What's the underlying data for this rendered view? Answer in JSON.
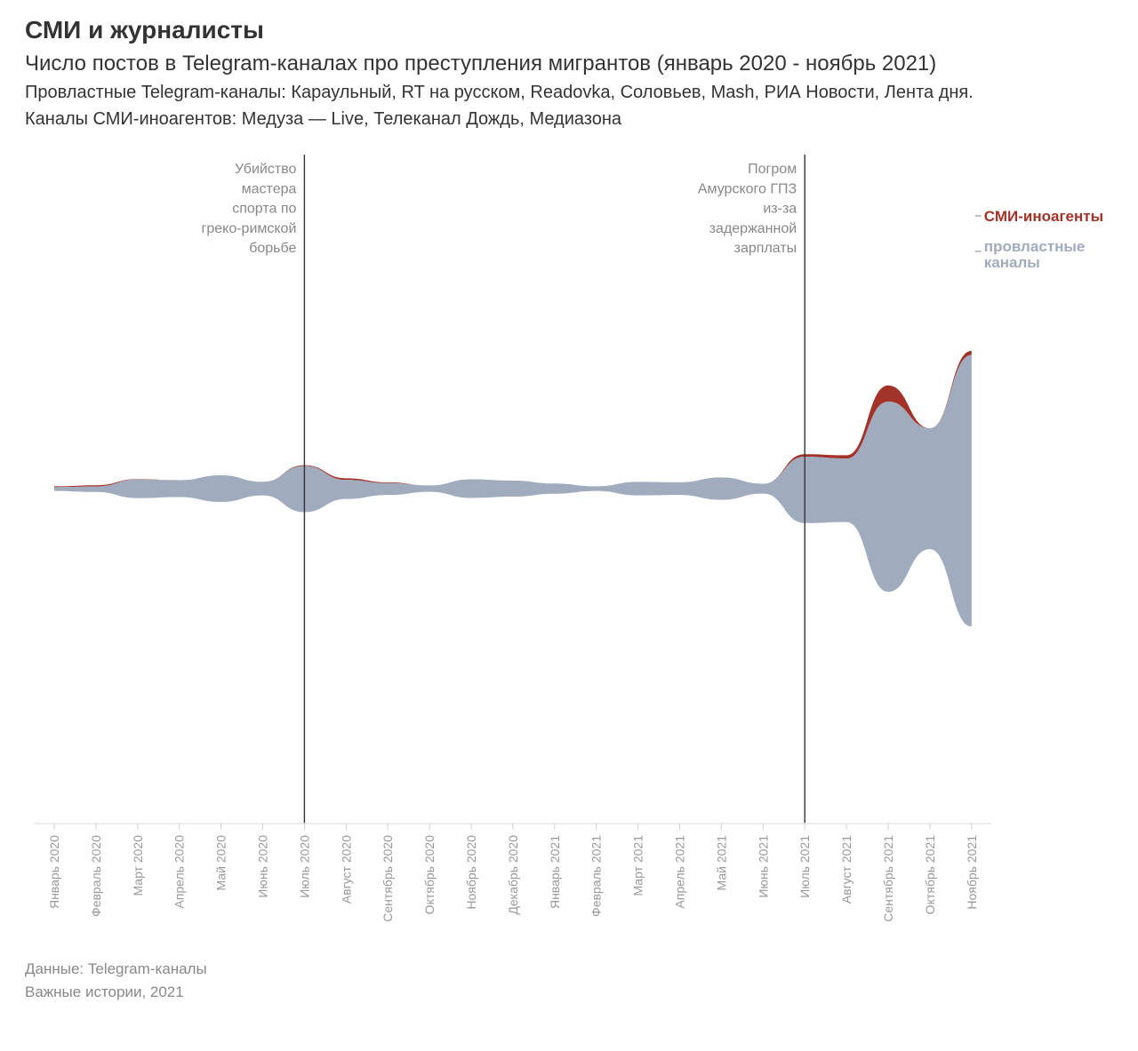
{
  "header": {
    "title": "СМИ и журналисты",
    "subtitle": "Число постов в Telegram-каналах про преступления мигрантов (январь 2020 - ноябрь 2021)",
    "description_line1": "Провластные Telegram-каналы: Караульный, RT на русском, Readovka, Соловьев, Mash, РИА Новости, Лента дня.",
    "description_line2": "Каналы СМИ-иноагентов: Медуза — Live, Телеканал Дождь, Медиазона"
  },
  "footer": {
    "source": "Данные: Telegram-каналы",
    "credit": "Важные истории, 2021"
  },
  "chart_data": {
    "type": "area",
    "layout": "streamgraph",
    "categories": [
      "Январь 2020",
      "Февраль 2020",
      "Март 2020",
      "Апрель 2020",
      "Май 2020",
      "Июнь 2020",
      "Июль 2020",
      "Август 2020",
      "Сентябрь 2020",
      "Октябрь 2020",
      "Ноябрь 2020",
      "Декабрь 2020",
      "Январь 2021",
      "Февраль 2021",
      "Март 2021",
      "Апрель 2021",
      "Май 2021",
      "Июнь 2021",
      "Июль 2021",
      "Август 2021",
      "Сентябрь 2021",
      "Октябрь 2021",
      "Ноябрь 2021"
    ],
    "series": [
      {
        "name": "провластные каналы",
        "color": "#a0abbd",
        "values": [
          9,
          13,
          44,
          40,
          63,
          32,
          109,
          45,
          28,
          15,
          44,
          38,
          24,
          11,
          32,
          30,
          53,
          23,
          157,
          150,
          450,
          286,
          642
        ]
      },
      {
        "name": "СМИ-иноагенты",
        "color": "#a33328",
        "values": [
          2,
          3,
          1,
          0,
          0,
          0,
          2,
          4,
          2,
          0,
          0,
          0,
          0,
          0,
          0,
          0,
          0,
          0,
          6,
          8,
          38,
          0,
          10
        ]
      }
    ],
    "annotations": [
      {
        "x": "Июль 2020",
        "lines": [
          "Убийство",
          "мастера",
          "спорта по",
          "греко-римской",
          "борьбе"
        ]
      },
      {
        "x": "Июль 2021",
        "lines": [
          "Погром",
          "Амурского ГПЗ",
          "из-за",
          "задержанной",
          "зарплаты"
        ]
      }
    ],
    "legend": {
      "placement": "right"
    },
    "grid": false
  }
}
